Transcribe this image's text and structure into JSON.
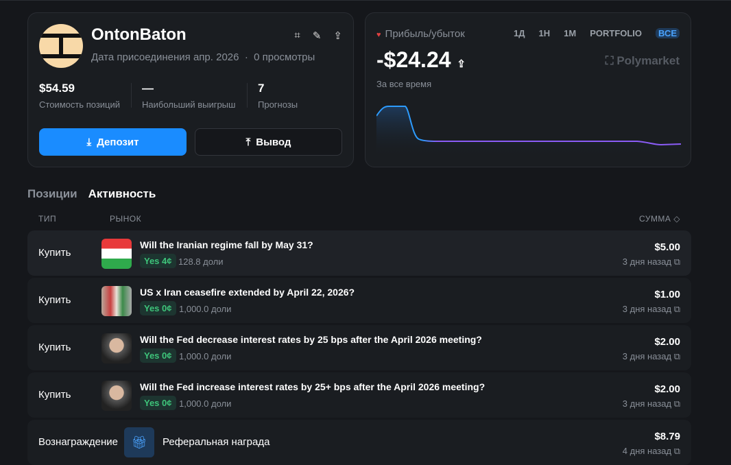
{
  "profile": {
    "username": "OntonBaton",
    "joined": "Дата присоединения апр. 2026",
    "dot": "·",
    "views": "0 просмотры",
    "stats": [
      {
        "value": "$54.59",
        "label": "Стоимость позиций"
      },
      {
        "value": "—",
        "label": "Наибольший выигрыш"
      },
      {
        "value": "7",
        "label": "Прогнозы"
      }
    ],
    "deposit": "Депозит",
    "withdraw": "Вывод"
  },
  "pnl": {
    "label": "Прибыль/убыток",
    "value": "-$24.24",
    "period": "За все время",
    "brand": "Polymarket",
    "timeframes": [
      "1Д",
      "1Н",
      "1М",
      "PORTFOLIO"
    ],
    "selected": "ВСЕ",
    "colors": {
      "line": "#8b5cf6",
      "start": "#2d9cff"
    }
  },
  "tabs": {
    "positions": "Позиции",
    "activity": "Активность"
  },
  "headers": {
    "type": "ТИП",
    "market": "РЫНОК",
    "amount": "СУММА ◇"
  },
  "rows": [
    {
      "type": "Купить",
      "title": "Will the Iranian regime fall by May 31?",
      "badge": "Yes 4¢",
      "shares": "128.8 доли",
      "amount": "$5.00",
      "time": "3 дня назад"
    },
    {
      "type": "Купить",
      "title": "US x Iran ceasefire extended by April 22, 2026?",
      "badge": "Yes 0¢",
      "shares": "1,000.0 доли",
      "amount": "$1.00",
      "time": "3 дня назад"
    },
    {
      "type": "Купить",
      "title": "Will the Fed decrease interest rates by 25 bps after the April 2026 meeting?",
      "badge": "Yes 0¢",
      "shares": "1,000.0 доли",
      "amount": "$2.00",
      "time": "3 дня назад"
    },
    {
      "type": "Купить",
      "title": "Will the Fed increase interest rates by 25+ bps after the April 2026 meeting?",
      "badge": "Yes 0¢",
      "shares": "1,000.0 доли",
      "amount": "$2.00",
      "time": "3 дня назад"
    },
    {
      "type": "Вознаграждение",
      "title": "Реферальная награда",
      "amount": "$8.79",
      "time": "4 дня назад"
    }
  ]
}
